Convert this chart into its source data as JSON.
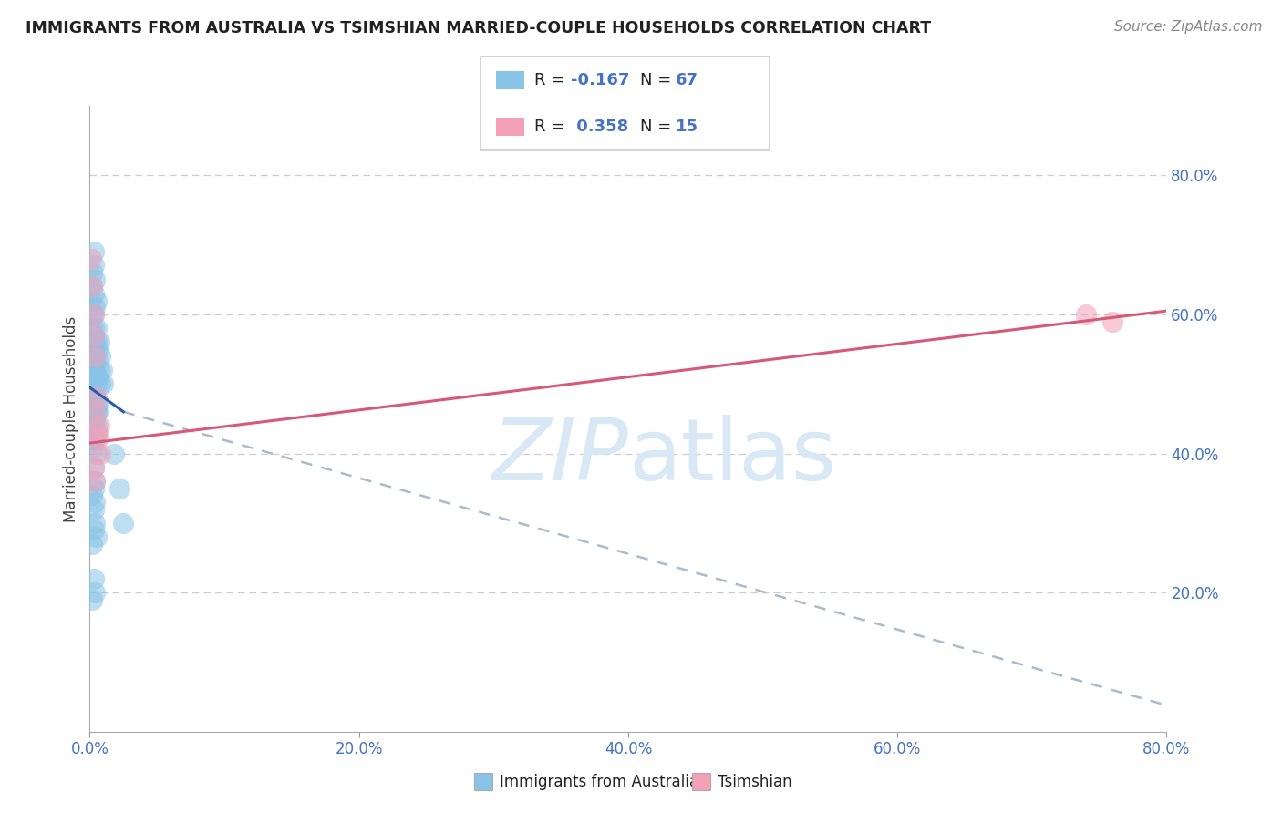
{
  "title": "IMMIGRANTS FROM AUSTRALIA VS TSIMSHIAN MARRIED-COUPLE HOUSEHOLDS CORRELATION CHART",
  "source": "Source: ZipAtlas.com",
  "ylabel": "Married-couple Households",
  "xlabel_blue": "Immigrants from Australia",
  "xlabel_pink": "Tsimshian",
  "R_blue": -0.167,
  "N_blue": 67,
  "R_pink": 0.358,
  "N_pink": 15,
  "xlim": [
    0.0,
    0.8
  ],
  "ylim": [
    0.0,
    0.9
  ],
  "right_yticks": [
    0.2,
    0.4,
    0.6,
    0.8
  ],
  "xticks": [
    0.0,
    0.2,
    0.4,
    0.6,
    0.8
  ],
  "blue_color": "#89C4E8",
  "pink_color": "#F4A0B8",
  "blue_line_color": "#2B5BA8",
  "pink_line_color": "#D85878",
  "dashed_line_color": "#AABBCC",
  "watermark_color": "#D8E8F4",
  "title_color": "#222222",
  "source_color": "#888888",
  "blue_scatter_x": [
    0.001,
    0.001,
    0.002,
    0.002,
    0.003,
    0.003,
    0.003,
    0.003,
    0.003,
    0.003,
    0.003,
    0.004,
    0.004,
    0.004,
    0.004,
    0.004,
    0.005,
    0.005,
    0.005,
    0.005,
    0.005,
    0.006,
    0.006,
    0.006,
    0.007,
    0.007,
    0.008,
    0.008,
    0.009,
    0.01,
    0.002,
    0.002,
    0.003,
    0.003,
    0.004,
    0.004,
    0.005,
    0.005,
    0.006,
    0.006,
    0.003,
    0.003,
    0.004,
    0.004,
    0.005,
    0.003,
    0.003,
    0.004,
    0.005,
    0.002,
    0.003,
    0.004,
    0.002,
    0.003,
    0.004,
    0.005,
    0.003,
    0.004,
    0.002,
    0.003,
    0.018,
    0.022,
    0.025,
    0.003,
    0.002,
    0.003,
    0.004
  ],
  "blue_scatter_y": [
    0.58,
    0.62,
    0.64,
    0.66,
    0.69,
    0.67,
    0.63,
    0.6,
    0.55,
    0.53,
    0.57,
    0.65,
    0.61,
    0.56,
    0.52,
    0.48,
    0.58,
    0.54,
    0.5,
    0.46,
    0.62,
    0.55,
    0.51,
    0.47,
    0.56,
    0.52,
    0.54,
    0.5,
    0.52,
    0.5,
    0.5,
    0.46,
    0.44,
    0.41,
    0.45,
    0.42,
    0.44,
    0.4,
    0.43,
    0.46,
    0.48,
    0.52,
    0.49,
    0.53,
    0.47,
    0.54,
    0.58,
    0.51,
    0.56,
    0.6,
    0.38,
    0.36,
    0.34,
    0.32,
    0.3,
    0.28,
    0.22,
    0.2,
    0.19,
    0.42,
    0.4,
    0.35,
    0.3,
    0.35,
    0.27,
    0.29,
    0.33
  ],
  "pink_scatter_x": [
    0.001,
    0.002,
    0.003,
    0.003,
    0.004,
    0.004,
    0.005,
    0.006,
    0.007,
    0.008,
    0.003,
    0.004,
    0.005,
    0.74,
    0.76
  ],
  "pink_scatter_y": [
    0.68,
    0.64,
    0.6,
    0.57,
    0.54,
    0.46,
    0.48,
    0.42,
    0.44,
    0.4,
    0.38,
    0.36,
    0.43,
    0.6,
    0.59
  ],
  "blue_line_x0": 0.0,
  "blue_line_y0": 0.495,
  "blue_line_x1": 0.025,
  "blue_line_y1": 0.46,
  "blue_line_x_dash_end": 0.8,
  "blue_line_y_dash_end": 0.038,
  "pink_line_x0": 0.0,
  "pink_line_y0": 0.415,
  "pink_line_x1": 0.8,
  "pink_line_y1": 0.605
}
